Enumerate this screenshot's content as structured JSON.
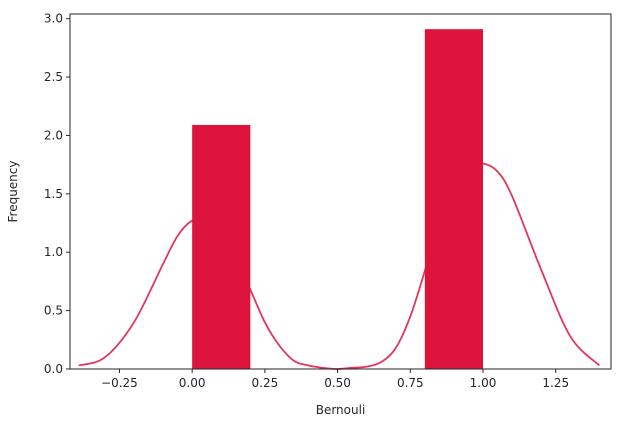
{
  "chart_data": {
    "type": "bar",
    "xlabel": "Bernouli",
    "ylabel": "Frequency",
    "xlim": [
      -0.42,
      1.44
    ],
    "ylim": [
      0,
      3.04
    ],
    "xticks": [
      -0.25,
      0.0,
      0.25,
      0.5,
      0.75,
      1.0,
      1.25
    ],
    "xtick_labels": [
      "−0.25",
      "0.00",
      "0.25",
      "0.50",
      "0.75",
      "1.00",
      "1.25"
    ],
    "yticks": [
      0.0,
      0.5,
      1.0,
      1.5,
      2.0,
      2.5,
      3.0
    ],
    "ytick_labels": [
      "0.0",
      "0.5",
      "1.0",
      "1.5",
      "2.0",
      "2.5",
      "3.0"
    ],
    "grid": false,
    "bars": [
      {
        "x0": 0.0,
        "x1": 0.2,
        "value": 2.09
      },
      {
        "x0": 0.8,
        "x1": 1.0,
        "value": 2.91
      }
    ],
    "bar_color": "#dc143c",
    "kde": {
      "color": "#dc143c",
      "x": [
        -0.39,
        -0.3,
        -0.2,
        -0.1,
        -0.05,
        0.0,
        0.05,
        0.1,
        0.15,
        0.2,
        0.25,
        0.3,
        0.35,
        0.4,
        0.45,
        0.5,
        0.55,
        0.6,
        0.65,
        0.7,
        0.75,
        0.8,
        0.85,
        0.9,
        0.95,
        1.0,
        1.05,
        1.1,
        1.2,
        1.3,
        1.4
      ],
      "y": [
        0.03,
        0.1,
        0.4,
        0.9,
        1.14,
        1.27,
        1.27,
        1.17,
        0.95,
        0.68,
        0.4,
        0.2,
        0.07,
        0.03,
        0.01,
        0.0,
        0.01,
        0.02,
        0.06,
        0.18,
        0.45,
        0.84,
        1.25,
        1.56,
        1.73,
        1.76,
        1.69,
        1.48,
        0.85,
        0.28,
        0.03
      ]
    }
  }
}
